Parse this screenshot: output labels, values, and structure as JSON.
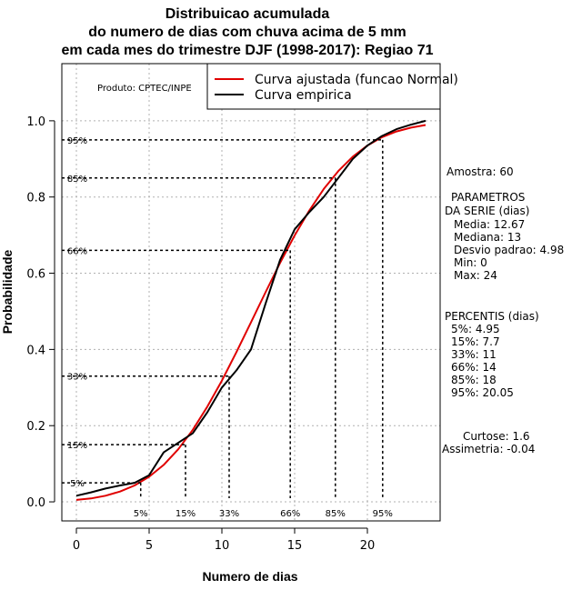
{
  "chart_data": {
    "type": "line",
    "title_lines": [
      "Distribuicao acumulada",
      "do numero de dias com chuva acima de 5 mm",
      "em cada mes do trimestre DJF (1998-2017): Regiao 71"
    ],
    "xlabel": "Numero de dias",
    "ylabel": "Probabilidade",
    "xlim": [
      -1,
      25
    ],
    "ylim": [
      -0.05,
      1.15
    ],
    "xticks": [
      0,
      5,
      10,
      15,
      20
    ],
    "yticks": [
      0.0,
      0.2,
      0.4,
      0.6,
      0.8,
      1.0
    ],
    "ytick_labels": [
      "0.0",
      "0.2",
      "0.4",
      "0.6",
      "0.8",
      "1.0"
    ],
    "grid": true,
    "legend_position": "top-right",
    "series": [
      {
        "name": "Curva ajustada (funcao Normal)",
        "color": "#e00000",
        "x": [
          0,
          1,
          2,
          3,
          4,
          5,
          6,
          7,
          8,
          9,
          10,
          11,
          12,
          13,
          14,
          15,
          16,
          17,
          18,
          19,
          20,
          21,
          22,
          23,
          24
        ],
        "y": [
          0.005,
          0.009,
          0.016,
          0.027,
          0.043,
          0.066,
          0.097,
          0.138,
          0.189,
          0.25,
          0.318,
          0.393,
          0.471,
          0.55,
          0.627,
          0.699,
          0.764,
          0.821,
          0.868,
          0.906,
          0.935,
          0.957,
          0.972,
          0.982,
          0.989
        ]
      },
      {
        "name": "Curva empirica",
        "color": "#000000",
        "x": [
          0,
          1,
          2,
          3,
          4,
          5,
          6,
          7,
          8,
          9,
          10,
          11,
          12,
          13,
          14,
          15,
          16,
          17,
          18,
          19,
          20,
          21,
          22,
          23,
          24
        ],
        "y": [
          0.016,
          0.025,
          0.035,
          0.043,
          0.05,
          0.07,
          0.13,
          0.155,
          0.18,
          0.235,
          0.3,
          0.345,
          0.4,
          0.52,
          0.635,
          0.715,
          0.76,
          0.8,
          0.85,
          0.9,
          0.935,
          0.96,
          0.978,
          0.99,
          1.0
        ]
      }
    ],
    "percentile_markers": [
      {
        "label": "5%",
        "prob": 0.05,
        "value": 4.42
      },
      {
        "label": "15%",
        "prob": 0.15,
        "value": 7.5
      },
      {
        "label": "33%",
        "prob": 0.33,
        "value": 10.5
      },
      {
        "label": "66%",
        "prob": 0.66,
        "value": 14.7
      },
      {
        "label": "85%",
        "prob": 0.85,
        "value": 17.8
      },
      {
        "label": "95%",
        "prob": 0.95,
        "value": 21.05
      }
    ],
    "product_label": "Produto: CPTEC/INPE",
    "side_panel": {
      "sample": "Amostra: 60",
      "params_header_1": "PARAMETROS",
      "params_header_2": "DA SERIE (dias)",
      "params": [
        "Media: 12.67",
        "Mediana: 13",
        "Desvio padrao: 4.98",
        "Min: 0",
        "Max: 24"
      ],
      "percentiles_header": "PERCENTIS (dias)",
      "percentiles": [
        "5%: 4.95",
        "15%: 7.7",
        "33%: 11",
        "66%: 14",
        "85%: 18",
        "95%: 20.05"
      ],
      "kurtosis": "Curtose: 1.6",
      "skewness": "Assimetria: -0.04"
    }
  }
}
